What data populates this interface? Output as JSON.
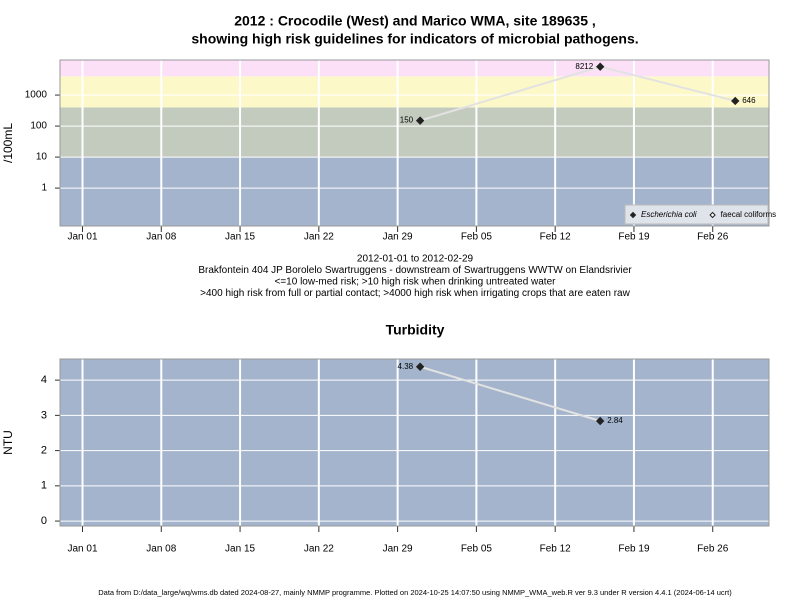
{
  "chart_data": [
    {
      "type": "line",
      "title": [
        "2012 : Crocodile (West) and Marico WMA, site 189635 ,",
        "showing high risk guidelines for indicators of microbial pathogens."
      ],
      "ylabel": "/100mL",
      "log_y": true,
      "ylim": [
        0.06,
        13500
      ],
      "yticks": [
        1,
        10,
        100,
        1000
      ],
      "xlim": [
        "2011-12-30",
        "2012-03-02"
      ],
      "xticks": [
        {
          "value": "2012-01-01",
          "label": "Jan 01"
        },
        {
          "value": "2012-01-08",
          "label": "Jan 08"
        },
        {
          "value": "2012-01-15",
          "label": "Jan 15"
        },
        {
          "value": "2012-01-22",
          "label": "Jan 22"
        },
        {
          "value": "2012-01-29",
          "label": "Jan 29"
        },
        {
          "value": "2012-02-05",
          "label": "Feb 05"
        },
        {
          "value": "2012-02-12",
          "label": "Feb 12"
        },
        {
          "value": "2012-02-19",
          "label": "Feb 19"
        },
        {
          "value": "2012-02-26",
          "label": "Feb 26"
        }
      ],
      "grid": true,
      "thresholds": [
        10,
        400,
        4000
      ],
      "band_colors": [
        "#a3b4cc",
        "#c3cbbf",
        "#fdf8c8",
        "#fbe0f8"
      ],
      "legend": "lower right",
      "line_color": "#e2e2e2",
      "series": [
        {
          "name": "Escherichia coli",
          "italic": true,
          "marker": "filled",
          "color": "#222222",
          "x": [
            "2012-01-31",
            "2012-02-16",
            "2012-02-28"
          ],
          "values": [
            150,
            8212,
            646
          ]
        },
        {
          "name": "faecal coliforms",
          "italic": false,
          "marker": "open",
          "color": "#222222",
          "x": [],
          "values": []
        }
      ],
      "notes": [
        "2012-01-01 to 2012-02-29",
        "Brakfontein 404 JP Borolelo Swartruggens - downstream of Swartruggens WWTW on Elandsrivier",
        "<=10 low-med risk; >10 high risk when drinking untreated water",
        ">400 high risk from full or partial contact; >4000 high risk when irrigating crops that are eaten raw"
      ]
    },
    {
      "type": "line",
      "title": [
        "Turbidity"
      ],
      "ylabel": "NTU",
      "log_y": false,
      "ylim": [
        -0.14,
        4.6
      ],
      "yticks": [
        0,
        1,
        2,
        3,
        4
      ],
      "xlim": [
        "2011-12-30",
        "2012-03-02"
      ],
      "xticks": [
        {
          "value": "2012-01-01",
          "label": "Jan 01"
        },
        {
          "value": "2012-01-08",
          "label": "Jan 08"
        },
        {
          "value": "2012-01-15",
          "label": "Jan 15"
        },
        {
          "value": "2012-01-22",
          "label": "Jan 22"
        },
        {
          "value": "2012-01-29",
          "label": "Jan 29"
        },
        {
          "value": "2012-02-05",
          "label": "Feb 05"
        },
        {
          "value": "2012-02-12",
          "label": "Feb 12"
        },
        {
          "value": "2012-02-19",
          "label": "Feb 19"
        },
        {
          "value": "2012-02-26",
          "label": "Feb 26"
        }
      ],
      "grid": true,
      "band_colors": [
        "#a3b4cc"
      ],
      "line_color": "#e2e2e2",
      "series": [
        {
          "name": "Turbidity",
          "marker": "filled",
          "color": "#222222",
          "x": [
            "2012-01-31",
            "2012-02-16"
          ],
          "values": [
            4.38,
            2.84
          ]
        }
      ]
    }
  ],
  "footer": "Data from D:/data_large/wq/wms.db dated 2024-08-27, mainly NMMP programme. Plotted on 2024-10-25 14:07:50 using NMMP_WMA_web.R ver 9.3 under R version 4.4.1 (2024-06-14 ucrt)"
}
